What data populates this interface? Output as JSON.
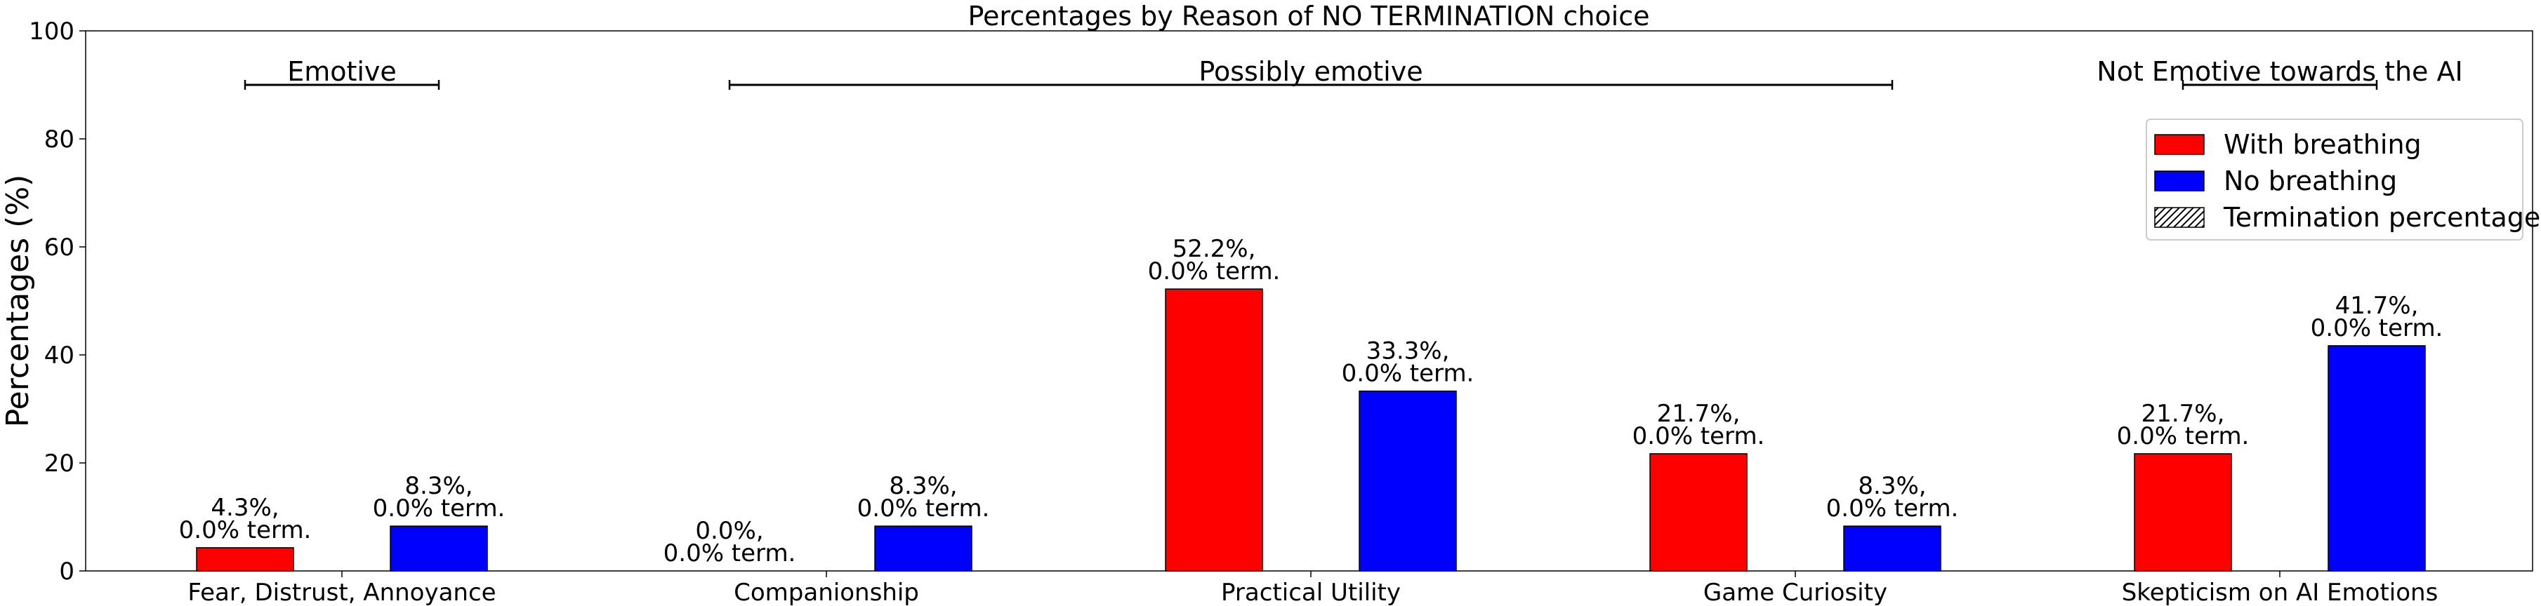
{
  "chart_data": {
    "type": "bar",
    "title": "Percentages by Reason of NO TERMINATION choice",
    "xlabel": "",
    "ylabel": "Percentages (%)",
    "ylim": [
      0,
      100
    ],
    "yticks": [
      0,
      20,
      40,
      60,
      80,
      100
    ],
    "grid": false,
    "legend_position": "top-right",
    "categories": [
      "Fear, Distrust, Annoyance",
      "Companionship",
      "Practical Utility",
      "Game Curiosity",
      "Skepticism on AI Emotions"
    ],
    "series": [
      {
        "name": "With breathing",
        "color": "#ff0000",
        "values": [
          4.3,
          0.0,
          52.2,
          21.7,
          21.7
        ],
        "labels": [
          [
            "4.3%,",
            "0.0% term."
          ],
          [
            "0.0%,",
            "0.0% term."
          ],
          [
            "52.2%,",
            "0.0% term."
          ],
          [
            "21.7%,",
            "0.0% term."
          ],
          [
            "21.7%,",
            "0.0% term."
          ]
        ]
      },
      {
        "name": "No breathing",
        "color": "#0000ff",
        "values": [
          8.3,
          8.3,
          33.3,
          8.3,
          41.7
        ],
        "labels": [
          [
            "8.3%,",
            "0.0% term."
          ],
          [
            "8.3%,",
            "0.0% term."
          ],
          [
            "33.3%,",
            "0.0% term."
          ],
          [
            "8.3%,",
            "0.0% term."
          ],
          [
            "41.7%,",
            "0.0% term."
          ]
        ]
      }
    ],
    "termination_percentage": [
      [
        0.0,
        0.0
      ],
      [
        0.0,
        0.0
      ],
      [
        0.0,
        0.0
      ],
      [
        0.0,
        0.0
      ],
      [
        0.0,
        0.0
      ]
    ],
    "legend": [
      "With breathing",
      "No breathing",
      "Termination percentage"
    ],
    "groups": [
      {
        "label": "Emotive",
        "from": 0,
        "to": 0,
        "y": 90
      },
      {
        "label": "Possibly emotive",
        "from": 1,
        "to": 3,
        "y": 90
      },
      {
        "label": "Not Emotive towards the AI",
        "from": 4,
        "to": 4,
        "y": 90
      }
    ]
  }
}
